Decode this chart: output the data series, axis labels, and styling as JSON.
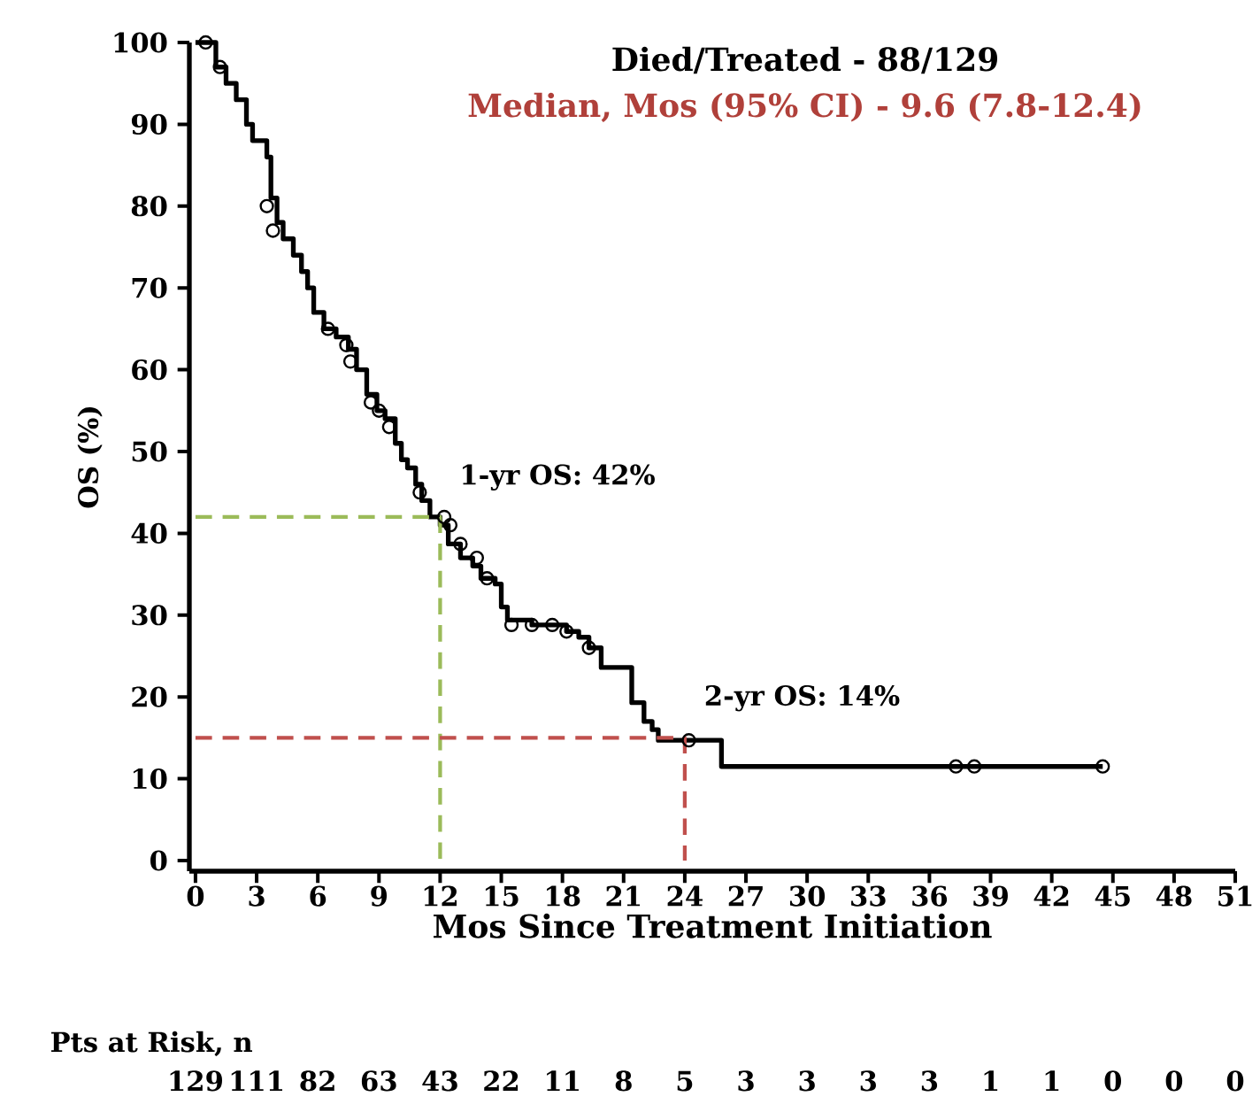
{
  "chart_data": {
    "type": "step",
    "title": "Died/Treated - 88/129",
    "subtitle": "Median, Mos (95% CI) - 9.6 (7.8-12.4)",
    "xlabel": "Mos Since Treatment Initiation",
    "ylabel": "OS (%)",
    "xlim": [
      -0.3,
      51
    ],
    "ylim": [
      -1.3,
      100
    ],
    "xticks": [
      0,
      3,
      6,
      9,
      12,
      15,
      18,
      21,
      24,
      27,
      30,
      33,
      36,
      39,
      42,
      45,
      48,
      51
    ],
    "yticks": [
      0,
      10,
      20,
      30,
      40,
      50,
      60,
      70,
      80,
      90,
      100
    ],
    "grid": false,
    "series": [
      {
        "color": "#000000",
        "marker": "none",
        "x": [
          0,
          1.0,
          1.5,
          2.0,
          2.5,
          2.8,
          3.5,
          3.7,
          4.0,
          4.3,
          4.8,
          5.2,
          5.5,
          5.8,
          6.3,
          6.9,
          7.5,
          7.9,
          8.4,
          8.9,
          9.3,
          9.8,
          10.1,
          10.4,
          10.8,
          11.1,
          11.5,
          12.0,
          12.4,
          13.0,
          13.6,
          14.0,
          14.7,
          15.0,
          15.3,
          16.5,
          18.2,
          18.8,
          19.3,
          19.9,
          21.4,
          22.0,
          22.4,
          22.7,
          25.8,
          44.5
        ],
        "values": [
          100,
          97,
          95,
          93,
          90,
          88,
          86,
          81,
          78,
          76,
          74,
          72,
          70,
          67,
          65,
          64,
          62.5,
          60,
          57,
          55,
          54,
          51,
          49,
          48,
          46,
          44,
          42,
          41,
          38.7,
          37,
          36,
          34.5,
          33.8,
          31,
          29.4,
          28.8,
          28,
          27.3,
          26,
          23.6,
          19.3,
          17,
          16,
          14.7,
          11.5,
          11.5
        ]
      },
      {
        "type": "scatter",
        "color": "#000000",
        "marker": "circle",
        "x": [
          0.5,
          1.2,
          3.5,
          3.8,
          6.5,
          7.4,
          7.6,
          8.6,
          9.0,
          9.5,
          11.0,
          12.2,
          12.5,
          13.0,
          13.8,
          14.3,
          15.5,
          16.5,
          17.5,
          18.2,
          19.3,
          24.2,
          37.3,
          38.2,
          44.5
        ],
        "values": [
          100,
          97,
          80,
          77,
          65,
          63,
          61,
          56,
          55,
          53,
          45,
          42,
          41,
          38.7,
          37,
          34.5,
          28.8,
          28.8,
          28.8,
          28,
          26,
          14.7,
          11.5,
          11.5,
          11.5
        ]
      },
      {
        "type": "line",
        "color": "#9bbb59",
        "line_style": "dashed",
        "marker": "none",
        "x": [
          0,
          12,
          12
        ],
        "values": [
          42,
          42,
          0
        ]
      },
      {
        "type": "line",
        "color": "#c0504d",
        "line_style": "dashed",
        "marker": "none",
        "x": [
          0,
          24,
          24
        ],
        "values": [
          15,
          15,
          0
        ]
      }
    ],
    "annotations": [
      {
        "text": "1-yr OS: 42%",
        "x": 12,
        "y": 42
      },
      {
        "text": "2-yr OS: 14%",
        "x": 24,
        "y": 15
      },
      "Pts at Risk, n",
      "129",
      "111",
      "82",
      "63",
      "43",
      "22",
      "11",
      "8",
      "5",
      "3",
      "3",
      "3",
      "3",
      "1",
      "1",
      "0",
      "0",
      "0"
    ]
  }
}
